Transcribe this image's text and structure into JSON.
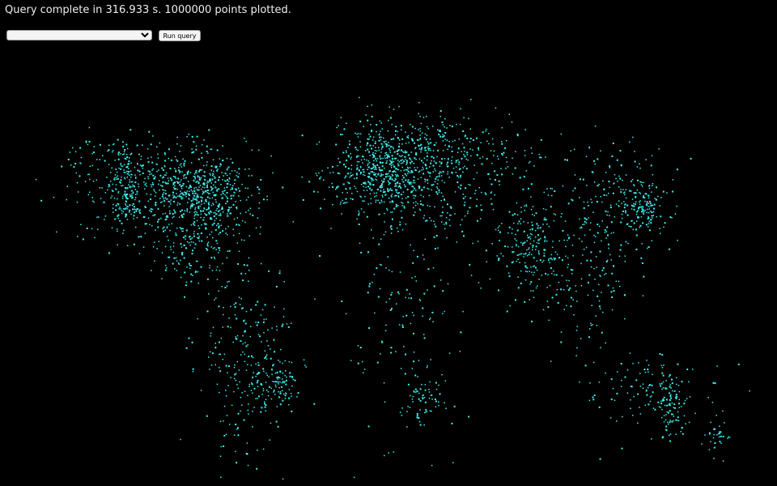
{
  "status": {
    "text": "Query complete in 316.933 s. 1000000 points plotted."
  },
  "controls": {
    "select_value": "",
    "button": "Run query"
  }
}
